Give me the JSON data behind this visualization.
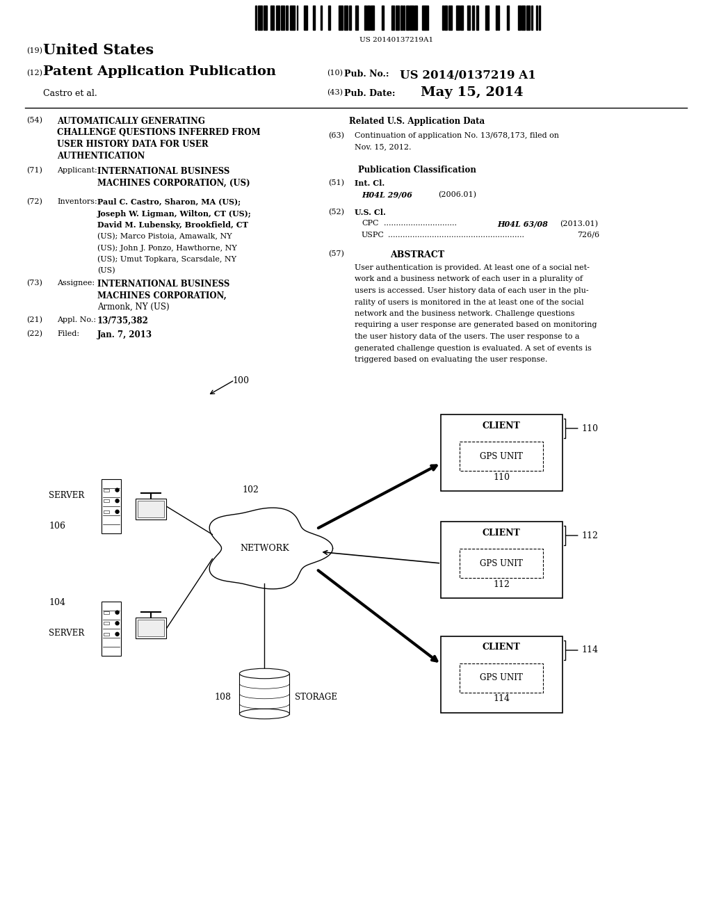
{
  "background_color": "#ffffff",
  "barcode_text": "US 20140137219A1",
  "header": {
    "num19": "(19)",
    "united_states": "United States",
    "num12": "(12)",
    "patent_app_pub": "Patent Application Publication",
    "num10": "(10)",
    "pub_no_label": "Pub. No.:",
    "pub_no_value": "US 2014/0137219 A1",
    "author": "Castro et al.",
    "num43": "(43)",
    "pub_date_label": "Pub. Date:",
    "pub_date_value": "May 15, 2014"
  },
  "left_col": {
    "num54": "(54)",
    "title_lines": [
      "AUTOMATICALLY GENERATING",
      "CHALLENGE QUESTIONS INFERRED FROM",
      "USER HISTORY DATA FOR USER",
      "AUTHENTICATION"
    ],
    "num71": "(71)",
    "applicant_label": "Applicant:",
    "applicant_line1": "INTERNATIONAL BUSINESS",
    "applicant_line2": "MACHINES CORPORATION, (US)",
    "num72": "(72)",
    "inventors_label": "Inventors:",
    "inv_lines": [
      "Paul C. Castro, Sharon, MA (US);",
      "Joseph W. Ligman, Wilton, CT (US);",
      "David M. Lubensky, Brookfield, CT",
      "(US); Marco Pistoia, Amawalk, NY",
      "(US); John J. Ponzo, Hawthorne, NY",
      "(US); Umut Topkara, Scarsdale, NY",
      "(US)"
    ],
    "inv_bold": [
      true,
      true,
      true,
      false,
      false,
      false,
      false
    ],
    "num73": "(73)",
    "assignee_label": "Assignee:",
    "assignee_lines": [
      "INTERNATIONAL BUSINESS",
      "MACHINES CORPORATION,",
      "Armonk, NY (US)"
    ],
    "num21": "(21)",
    "appl_no_label": "Appl. No.:",
    "appl_no_value": "13/735,382",
    "num22": "(22)",
    "filed_label": "Filed:",
    "filed_value": "Jan. 7, 2013"
  },
  "right_col": {
    "related_data_title": "Related U.S. Application Data",
    "num63": "(63)",
    "cont_lines": [
      "Continuation of application No. 13/678,173, filed on",
      "Nov. 15, 2012."
    ],
    "pub_class_title": "Publication Classification",
    "num51": "(51)",
    "int_cl_label": "Int. Cl.",
    "int_cl_value": "H04L 29/06",
    "int_cl_year": "(2006.01)",
    "num52": "(52)",
    "us_cl_label": "U.S. Cl.",
    "cpc_label": "CPC",
    "cpc_value": "H04L 63/08",
    "cpc_year": "(2013.01)",
    "uspc_label": "USPC",
    "uspc_value": "726/6",
    "num57": "(57)",
    "abstract_title": "ABSTRACT",
    "abstract_lines": [
      "User authentication is provided. At least one of a social net-",
      "work and a business network of each user in a plurality of",
      "users is accessed. User history data of each user in the plu-",
      "rality of users is monitored in the at least one of the social",
      "network and the business network. Challenge questions",
      "requiring a user response are generated based on monitoring",
      "the user history data of the users. The user response to a",
      "generated challenge question is evaluated. A set of events is",
      "triggered based on evaluating the user response."
    ]
  }
}
